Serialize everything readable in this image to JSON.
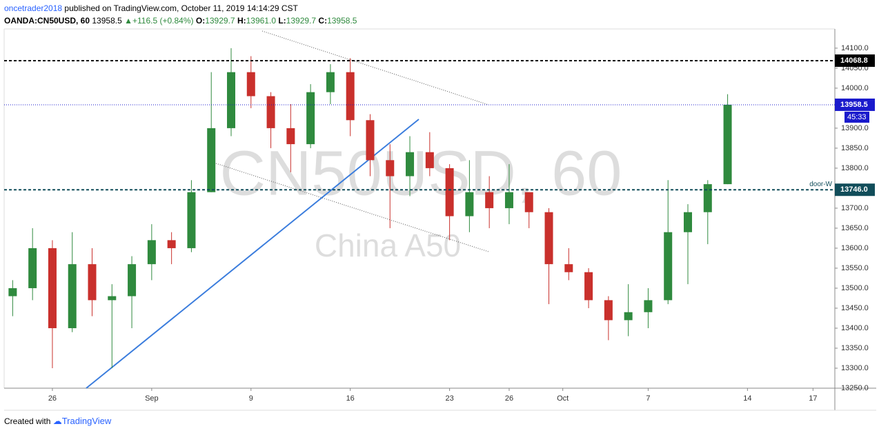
{
  "header": {
    "author": "oncetrader2018",
    "published": "published on TradingView.com, October 11, 2019 14:14:29 CST",
    "symbol": "OANDA:CN50USD, 60",
    "last": "13958.5",
    "change": "+116.5 (+0.84%)",
    "o_label": "O:",
    "o": "13929.7",
    "h_label": "H:",
    "h": "13961.0",
    "l_label": "L:",
    "l": "13929.7",
    "c_label": "C:",
    "c": "13958.5"
  },
  "footer": {
    "created": "Created with",
    "brand": "TradingView"
  },
  "chart_data": {
    "type": "candlestick",
    "watermark": "CN50USD, 60",
    "watermark_sub": "China A50",
    "up_color": "#2f8a3e",
    "down_color": "#c9302c",
    "grid": false,
    "x": [
      -2,
      -1,
      0,
      1,
      2,
      3,
      4,
      5,
      6,
      7,
      8,
      9,
      10,
      11,
      12,
      13,
      14,
      15,
      16,
      17,
      18,
      19,
      20,
      21,
      22,
      23,
      24,
      25,
      26,
      27,
      28,
      29,
      30,
      31,
      32,
      33,
      34
    ],
    "open": [
      13480,
      13500,
      13600,
      13400,
      13560,
      13470,
      13480,
      13560,
      13620,
      13600,
      13740,
      13900,
      14040,
      13980,
      13900,
      13860,
      13990,
      14040,
      13920,
      13820,
      13780,
      13840,
      13800,
      13680,
      13740,
      13700,
      13740,
      13690,
      13560,
      13540,
      13470,
      13420,
      13440,
      13470,
      13640,
      13690,
      13760
    ],
    "high": [
      13520,
      13650,
      13620,
      13640,
      13600,
      13510,
      13580,
      13660,
      13640,
      13770,
      14040,
      14100,
      14080,
      13990,
      13960,
      14010,
      14060,
      14075,
      13935,
      13860,
      13880,
      13890,
      13810,
      13820,
      13780,
      13810,
      13740,
      13700,
      13600,
      13550,
      13480,
      13510,
      13500,
      13770,
      13710,
      13770,
      13985
    ],
    "low": [
      13430,
      13470,
      13300,
      13390,
      13430,
      13300,
      13400,
      13520,
      13560,
      13590,
      13740,
      13880,
      13950,
      13850,
      13790,
      13850,
      13960,
      13880,
      13780,
      13650,
      13730,
      13780,
      13620,
      13640,
      13650,
      13660,
      13650,
      13460,
      13520,
      13450,
      13370,
      13380,
      13400,
      13460,
      13510,
      13610,
      13760
    ],
    "close": [
      13500,
      13600,
      13400,
      13560,
      13470,
      13480,
      13560,
      13620,
      13600,
      13740,
      13900,
      14040,
      13980,
      13900,
      13860,
      13990,
      14040,
      13920,
      13820,
      13780,
      13840,
      13800,
      13680,
      13740,
      13700,
      13740,
      13690,
      13560,
      13540,
      13470,
      13420,
      13440,
      13470,
      13640,
      13690,
      13760,
      13958.5
    ],
    "xlim": [
      -2.43,
      39.4
    ],
    "xticks": [
      {
        "value": 0,
        "label": "26"
      },
      {
        "value": 5,
        "label": "Sep"
      },
      {
        "value": 10,
        "label": "9"
      },
      {
        "value": 15,
        "label": "16"
      },
      {
        "value": 20,
        "label": "23"
      },
      {
        "value": 23,
        "label": "26"
      },
      {
        "value": 25.7,
        "label": "Oct"
      },
      {
        "value": 30,
        "label": "7"
      },
      {
        "value": 35,
        "label": "14"
      },
      {
        "value": 38.3,
        "label": "17"
      }
    ],
    "ylim": [
      13250,
      14148
    ],
    "yticks": [
      {
        "value": 13250,
        "label": "13250.0"
      },
      {
        "value": 13300,
        "label": "13300.0"
      },
      {
        "value": 13350,
        "label": "13350.0"
      },
      {
        "value": 13400,
        "label": "13400.0"
      },
      {
        "value": 13450,
        "label": "13450.0"
      },
      {
        "value": 13500,
        "label": "13500.0"
      },
      {
        "value": 13550,
        "label": "13550.0"
      },
      {
        "value": 13600,
        "label": "13600.0"
      },
      {
        "value": 13650,
        "label": "13650.0"
      },
      {
        "value": 13700,
        "label": "13700.0"
      },
      {
        "value": 13750,
        "label": "13750.0"
      },
      {
        "value": 13800,
        "label": "13800.0"
      },
      {
        "value": 13850,
        "label": "13850.0"
      },
      {
        "value": 13900,
        "label": "13900.0"
      },
      {
        "value": 13950,
        "label": "13950.0"
      },
      {
        "value": 14000,
        "label": "14000.0"
      },
      {
        "value": 14050,
        "label": "14050.0"
      },
      {
        "value": 14100,
        "label": "14100.0"
      }
    ],
    "levels": [
      {
        "value": 14068.8,
        "label": "14068.8",
        "color": "#000000"
      },
      {
        "value": 13958.5,
        "label": "13958.5",
        "color": "#1a1acc",
        "countdown": "45:33"
      },
      {
        "value": 13746,
        "label": "13746.0",
        "color": "#114d5a",
        "name": "door-W"
      }
    ]
  }
}
